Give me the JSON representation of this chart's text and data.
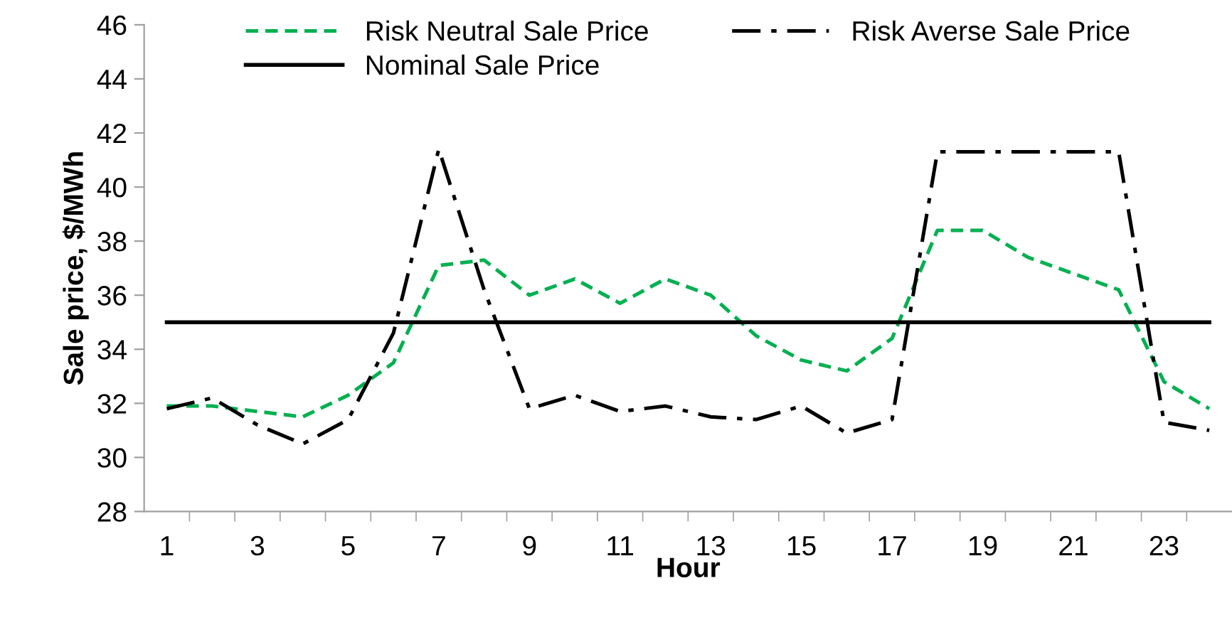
{
  "chart_data": {
    "type": "line",
    "xlabel": "Hour",
    "ylabel": "Sale price, $/MWh",
    "categories": [
      "1",
      null,
      "3",
      null,
      "5",
      null,
      "7",
      null,
      "9",
      null,
      "11",
      null,
      "13",
      null,
      "15",
      null,
      "17",
      null,
      "19",
      null,
      "21",
      null,
      "23",
      null
    ],
    "series": [
      {
        "name": "Risk Neutral Sale Price",
        "color": "#00b050",
        "line_style": "dashed",
        "values": [
          31.9,
          31.9,
          31.7,
          31.5,
          32.3,
          33.5,
          37.1,
          37.3,
          36.0,
          36.6,
          35.7,
          36.6,
          36.0,
          34.5,
          33.6,
          33.2,
          34.4,
          38.4,
          38.4,
          37.4,
          36.8,
          36.2,
          32.8,
          31.8
        ]
      },
      {
        "name": "Risk Averse Sale Price",
        "color": "#000000",
        "line_style": "dashdot",
        "values": [
          31.8,
          32.2,
          31.2,
          30.5,
          31.4,
          34.6,
          41.4,
          36.2,
          31.8,
          32.3,
          31.7,
          31.9,
          31.5,
          31.4,
          31.9,
          30.9,
          31.4,
          41.3,
          41.3,
          41.3,
          41.3,
          41.3,
          31.3,
          31.0
        ]
      },
      {
        "name": "Nominal Sale Price",
        "color": "#000000",
        "line_style": "solid",
        "values": [
          35,
          35,
          35,
          35,
          35,
          35,
          35,
          35,
          35,
          35,
          35,
          35,
          35,
          35,
          35,
          35,
          35,
          35,
          35,
          35,
          35,
          35,
          35,
          35
        ]
      }
    ],
    "ylim": [
      28,
      46
    ],
    "yticks": [
      28,
      30,
      32,
      34,
      36,
      38,
      40,
      42,
      44,
      46
    ],
    "grid": false,
    "legend": "top",
    "marker": "none"
  }
}
